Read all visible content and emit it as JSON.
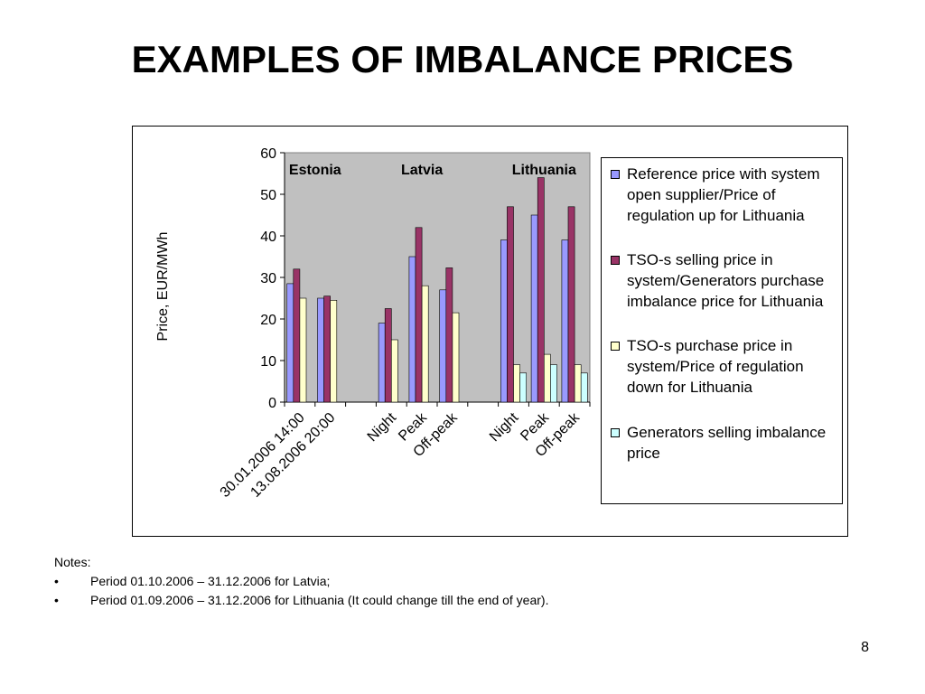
{
  "slide": {
    "title": "EXAMPLES OF IMBALANCE PRICES",
    "page_number": "8"
  },
  "notes": {
    "heading": "Notes:",
    "items": [
      {
        "bullet": "•",
        "text": "Period 01.10.2006 – 31.12.2006 for Latvia;"
      },
      {
        "bullet": "•",
        "text": "Period 01.09.2006 – 31.12.2006 for Lithuania (It could change till the end of year)."
      }
    ]
  },
  "chart_data": {
    "type": "bar",
    "ylabel": "Price, EUR/MWh",
    "xlabel": "",
    "ylim": [
      0,
      60
    ],
    "yticks": [
      0,
      10,
      20,
      30,
      40,
      50,
      60
    ],
    "grid": false,
    "legend_position": "right",
    "plot_background": "#c0c0c0",
    "categories": [
      "30.01.2006 14:00",
      "13.08.2006 20:00",
      "",
      "Night",
      "Peak",
      "Off-peak",
      "",
      "Night",
      "Peak",
      "Off-peak"
    ],
    "group_labels": [
      {
        "text": "Estonia",
        "category_index": 0.5
      },
      {
        "text": "Latvia",
        "category_index": 4
      },
      {
        "text": "Lithuania",
        "category_index": 8
      }
    ],
    "series": [
      {
        "name": "Reference  price with system open supplier/Price of regulation up for Lithuania",
        "color": "#9999ff",
        "values": [
          28.5,
          25,
          null,
          19,
          35,
          27,
          null,
          39,
          45,
          39
        ]
      },
      {
        "name": "TSO-s selling price in system/Generators purchase imbalance price for Lithuania",
        "color": "#993366",
        "values": [
          32,
          25.5,
          null,
          22.5,
          42,
          32.3,
          null,
          47,
          54,
          47
        ]
      },
      {
        "name": "TSO-s purchase price in system/Price of regulation down for Lithuania",
        "color": "#ffffcc",
        "values": [
          25,
          24.5,
          null,
          15,
          28,
          21.5,
          null,
          9,
          11.5,
          9
        ]
      },
      {
        "name": "Generators selling imbalance price",
        "color": "#ccffff",
        "values": [
          null,
          null,
          null,
          null,
          null,
          null,
          null,
          7,
          9,
          7
        ]
      }
    ]
  }
}
